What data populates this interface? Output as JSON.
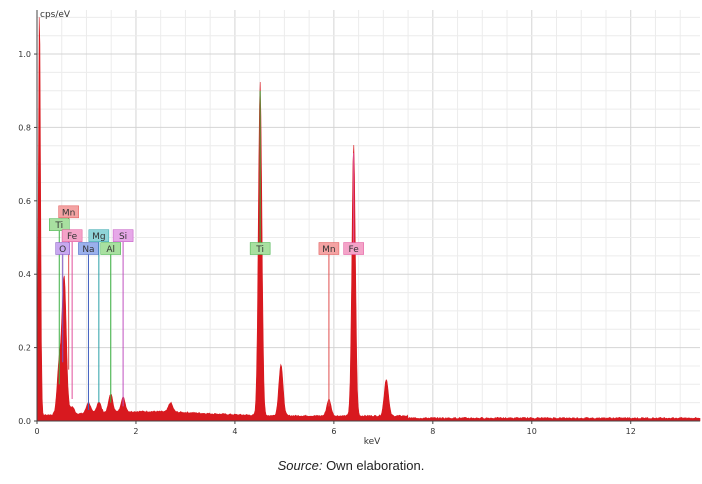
{
  "chart_data": {
    "type": "area",
    "title": "",
    "ylabel": "cps/eV",
    "xlabel": "keV",
    "xlim": [
      0,
      13.4
    ],
    "ylim": [
      0,
      1.12
    ],
    "grid": true,
    "x_ticks": [
      "0",
      "2",
      "4",
      "6",
      "8",
      "10",
      "12"
    ],
    "y_ticks": [
      "0.0",
      "0.2",
      "0.4",
      "0.6",
      "0.8",
      "1.0"
    ],
    "spectrum_color": "#d8191f",
    "peaks": [
      {
        "x": 0.05,
        "y": 1.12
      },
      {
        "x": 0.45,
        "y": 0.14
      },
      {
        "x": 0.55,
        "y": 0.37
      },
      {
        "x": 0.71,
        "y": 0.02
      },
      {
        "x": 1.04,
        "y": 0.03
      },
      {
        "x": 1.25,
        "y": 0.03
      },
      {
        "x": 1.49,
        "y": 0.05
      },
      {
        "x": 1.74,
        "y": 0.04
      },
      {
        "x": 2.7,
        "y": 0.025
      },
      {
        "x": 4.51,
        "y": 0.91
      },
      {
        "x": 4.93,
        "y": 0.14
      },
      {
        "x": 5.9,
        "y": 0.045
      },
      {
        "x": 6.4,
        "y": 0.74
      },
      {
        "x": 7.06,
        "y": 0.1
      }
    ],
    "element_markers": [
      {
        "label": "Mn",
        "x": 0.64,
        "y": 0.57,
        "line_to": 0.14,
        "fill": "#f4a3a3",
        "line": "#e05050"
      },
      {
        "label": "Ti",
        "x": 0.45,
        "y": 0.535,
        "line_to": 0.1,
        "fill": "#a8e0a0",
        "line": "#3cb043"
      },
      {
        "label": "Fe",
        "x": 0.71,
        "y": 0.505,
        "line_to": 0.06,
        "fill": "#f4a3c8",
        "line": "#e0509a"
      },
      {
        "label": "Mg",
        "x": 1.25,
        "y": 0.505,
        "line_to": 0.05,
        "fill": "#8fd4d8",
        "line": "#2aa0a8"
      },
      {
        "label": "Si",
        "x": 1.74,
        "y": 0.505,
        "line_to": 0.04,
        "fill": "#e6a8e8",
        "line": "#c050c0"
      },
      {
        "label": "O",
        "x": 0.52,
        "y": 0.47,
        "line_to": 0.16,
        "fill": "#c8a8f0",
        "line": "#8050c0"
      },
      {
        "label": "Na",
        "x": 1.04,
        "y": 0.47,
        "line_to": 0.03,
        "fill": "#9ab0ec",
        "line": "#4060c0"
      },
      {
        "label": "Al",
        "x": 1.49,
        "y": 0.47,
        "line_to": 0.05,
        "fill": "#a8e0a0",
        "line": "#3cb043"
      },
      {
        "label": "Ti",
        "x": 4.51,
        "y": 0.47,
        "line_to": 0.9,
        "fill": "#a8e0a0",
        "line": "#3cb043"
      },
      {
        "label": "Mn",
        "x": 5.9,
        "y": 0.47,
        "line_to": 0.04,
        "fill": "#f4a3a3",
        "line": "#e05050"
      },
      {
        "label": "Fe",
        "x": 6.4,
        "y": 0.47,
        "line_to": 0.73,
        "fill": "#f4a3c8",
        "line": "#e0509a"
      }
    ]
  },
  "caption": {
    "source_label": "Source:",
    "source_text": " Own elaboration."
  }
}
